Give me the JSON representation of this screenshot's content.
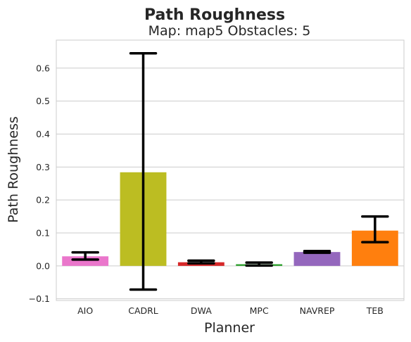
{
  "chart_data": {
    "type": "bar",
    "suptitle": "Path Roughness",
    "title": "Map: map5 Obstacles: 5",
    "xlabel": "Planner",
    "ylabel": "Path Roughness",
    "categories": [
      "AIO",
      "CADRL",
      "DWA",
      "MPC",
      "NAVREP",
      "TEB"
    ],
    "values": [
      0.029,
      0.284,
      0.011,
      0.005,
      0.042,
      0.107
    ],
    "error_low": [
      0.019,
      -0.072,
      0.008,
      0.001,
      0.04,
      0.072
    ],
    "error_high": [
      0.041,
      0.645,
      0.016,
      0.01,
      0.045,
      0.15
    ],
    "colors": [
      "#ea76cb",
      "#bcbd22",
      "#d62728",
      "#2ca02c",
      "#9467bd",
      "#ff7f0e"
    ],
    "ylim": [
      -0.105,
      0.685
    ],
    "yticks": [
      -0.1,
      0.0,
      0.1,
      0.2,
      0.3,
      0.4,
      0.5,
      0.6
    ],
    "ytick_labels": [
      "−0.1",
      "0.0",
      "0.1",
      "0.2",
      "0.3",
      "0.4",
      "0.5",
      "0.6"
    ],
    "grid": true,
    "errorbar_color": "#000000"
  }
}
